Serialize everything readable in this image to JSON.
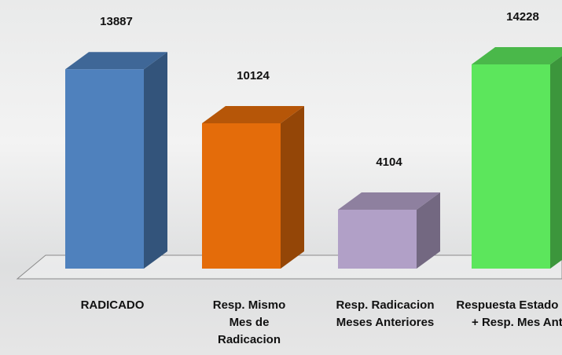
{
  "chart_data": {
    "type": "bar3d",
    "categories": [
      "RADICADO",
      "Resp. Mismo Mes de Radicacion",
      "Resp. Radicacion Meses Anteriores",
      "Respuesta Estado Op. + Resp. Mes Ant."
    ],
    "values": [
      13887,
      10124,
      4104,
      14228
    ],
    "colors": [
      "#4f81bd",
      "#e46c0a",
      "#b1a0c7",
      "#5ce65c"
    ]
  }
}
